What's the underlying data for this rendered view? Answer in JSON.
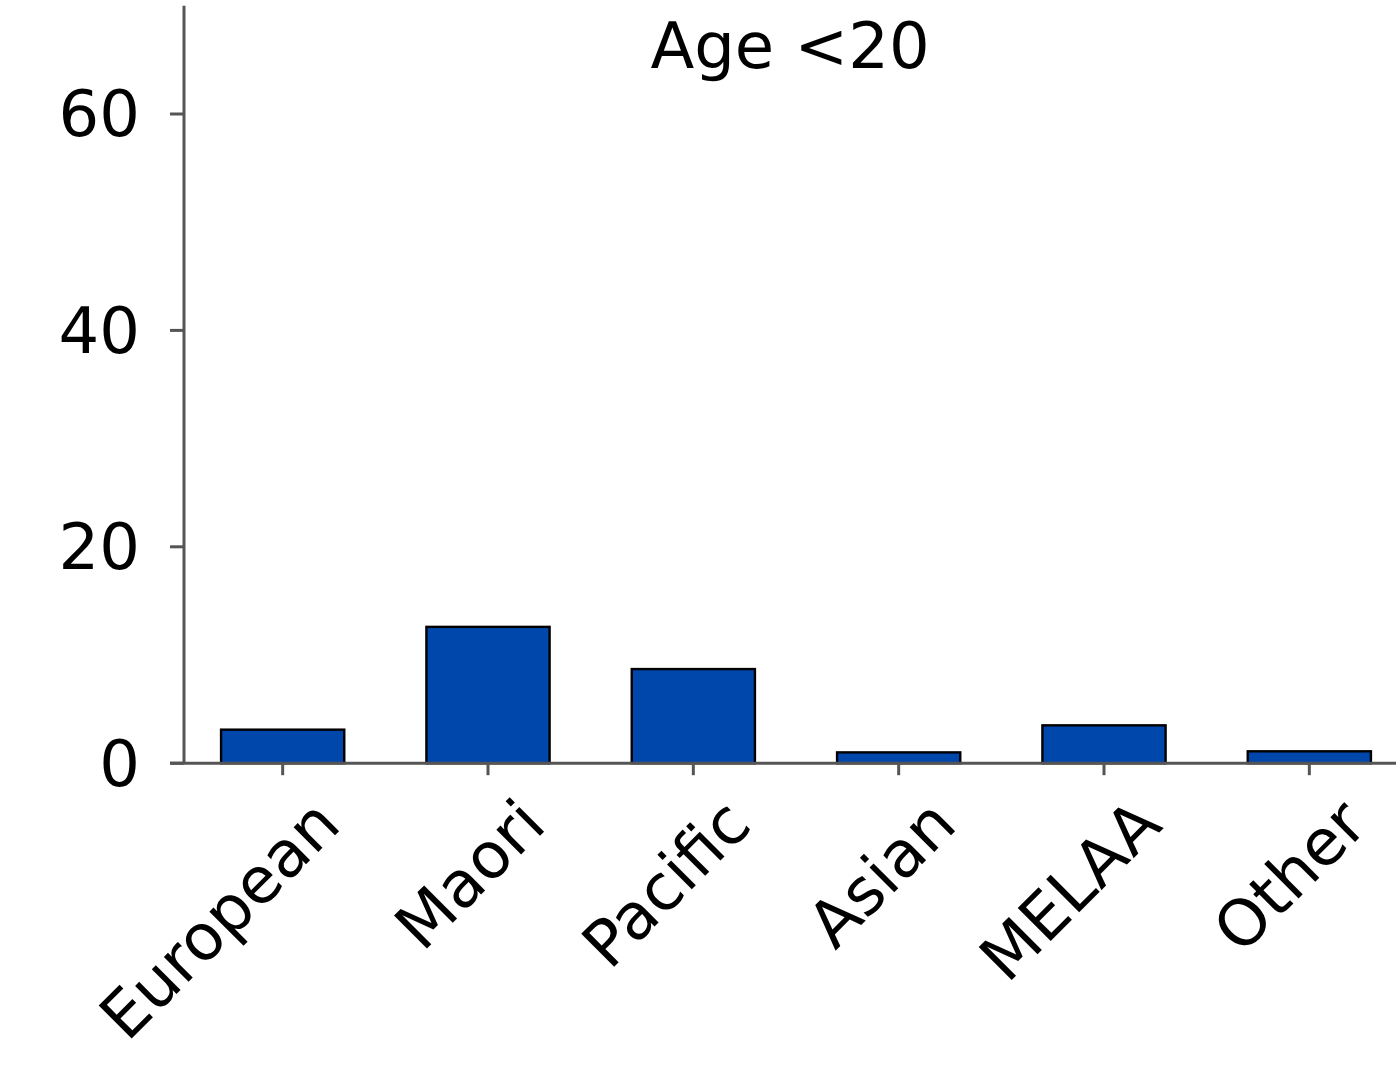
{
  "chart_data": {
    "type": "bar",
    "title": "Age <20",
    "categories": [
      "European",
      "Maori",
      "Pacific",
      "Asian",
      "MELAA",
      "Other"
    ],
    "values": [
      3.1,
      12.6,
      8.7,
      1.0,
      3.5,
      1.1
    ],
    "color": "#0047ab",
    "ylim": [
      0,
      70
    ],
    "yticks": [
      0,
      20,
      40,
      60
    ],
    "grid": false
  }
}
